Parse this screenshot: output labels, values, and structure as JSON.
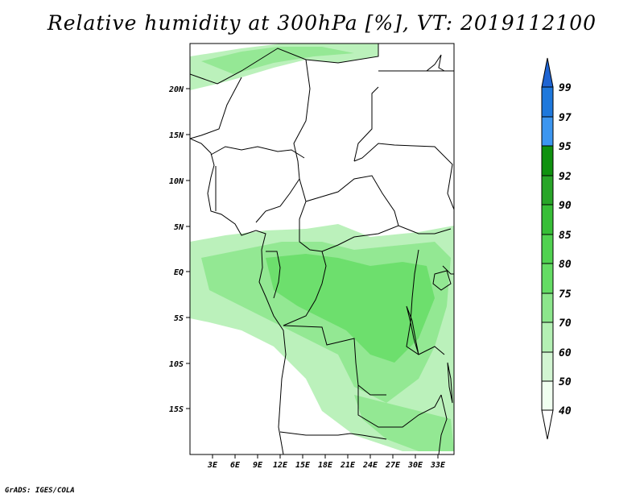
{
  "title": "Relative humidity at 300hPa [%], VT: 2019112100",
  "footer": "GrADS: IGES/COLA",
  "map": {
    "lon_range": [
      0,
      35
    ],
    "lat_range": [
      -20,
      25
    ],
    "lon_ticks": [
      "3E",
      "6E",
      "9E",
      "12E",
      "15E",
      "18E",
      "21E",
      "24E",
      "27E",
      "30E",
      "33E"
    ],
    "lat_ticks": [
      "20N",
      "15N",
      "10N",
      "5N",
      "EQ",
      "5S",
      "10S",
      "15S"
    ]
  },
  "colorbar": {
    "labels": [
      "99",
      "97",
      "95",
      "92",
      "90",
      "85",
      "80",
      "75",
      "70",
      "60",
      "50",
      "40"
    ],
    "colors": [
      "#1e64d2",
      "#1e78dc",
      "#3c96f0",
      "#0f910f",
      "#28a528",
      "#37be37",
      "#50d250",
      "#64dc64",
      "#8ce68c",
      "#b4f0b4",
      "#d2f5d2",
      "#f0fff0"
    ]
  }
}
